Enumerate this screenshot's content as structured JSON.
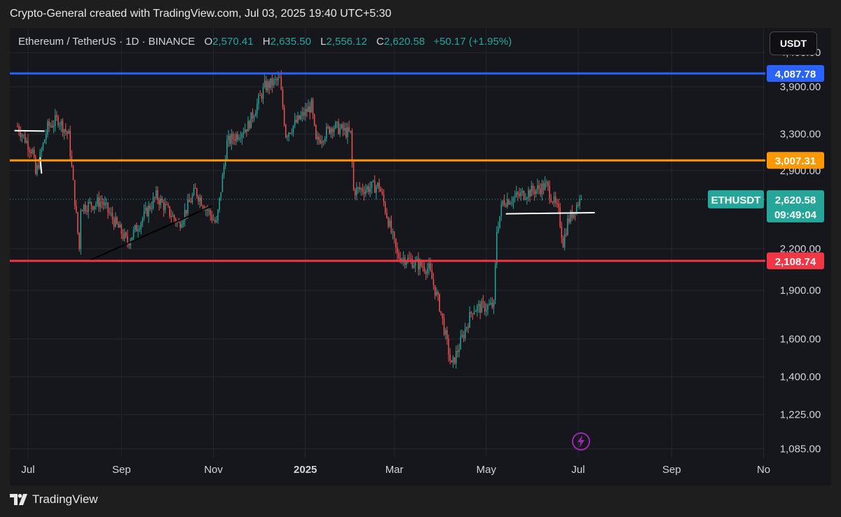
{
  "header": {
    "title": "Crypto-General created with TradingView.com, Jul 03, 2025 19:40 UTC+5:30"
  },
  "legend": {
    "symbol": "Ethereum / TetherUS · 1D · BINANCE",
    "open_label": "O",
    "open": "2,570.41",
    "high_label": "H",
    "high": "2,635.50",
    "low_label": "L",
    "low": "2,556.12",
    "close_label": "C",
    "close": "2,620.58",
    "change": "+50.17 (+1.95%)"
  },
  "currency_button": "USDT",
  "footer": {
    "brand": "TradingView"
  },
  "colors": {
    "background": "#16161d",
    "up": "#26a69a",
    "down": "#ef5350",
    "resistance_high": "#2962ff",
    "resistance_mid": "#ff9800",
    "support": "#f23645"
  },
  "chart_data": {
    "type": "candlestick",
    "symbol": "ETHUSDT",
    "y_scale": "log",
    "ylim": [
      1050,
      4800
    ],
    "y_ticks": [
      {
        "value": 4400,
        "label": "4,400.00"
      },
      {
        "value": 3900,
        "label": "3,900.00"
      },
      {
        "value": 3300,
        "label": "3,300.00"
      },
      {
        "value": 2900,
        "label": "2,900.00"
      },
      {
        "value": 2200,
        "label": "2,200.00"
      },
      {
        "value": 1900,
        "label": "1,900.00"
      },
      {
        "value": 1600,
        "label": "1,600.00"
      },
      {
        "value": 1400,
        "label": "1,400.00"
      },
      {
        "value": 1225,
        "label": "1,225.00"
      },
      {
        "value": 1085,
        "label": "1,085.00"
      }
    ],
    "x_ticks": [
      {
        "date": "2024-07-01",
        "label": "Jul"
      },
      {
        "date": "2024-09-01",
        "label": "Sep"
      },
      {
        "date": "2024-11-01",
        "label": "Nov"
      },
      {
        "date": "2025-01-01",
        "label": "2025"
      },
      {
        "date": "2025-03-01",
        "label": "Mar"
      },
      {
        "date": "2025-05-01",
        "label": "May"
      },
      {
        "date": "2025-07-01",
        "label": "Jul"
      },
      {
        "date": "2025-09-01",
        "label": "Sep"
      },
      {
        "date": "2025-11-01",
        "label": "No"
      }
    ],
    "price_anchors": [
      {
        "date": "2024-06-24",
        "price": 3420
      },
      {
        "date": "2024-07-05",
        "price": 3100
      },
      {
        "date": "2024-07-07",
        "price": 2860
      },
      {
        "date": "2024-07-15",
        "price": 3380
      },
      {
        "date": "2024-07-22",
        "price": 3480
      },
      {
        "date": "2024-07-29",
        "price": 3280
      },
      {
        "date": "2024-08-05",
        "price": 2200
      },
      {
        "date": "2024-08-06",
        "price": 2550
      },
      {
        "date": "2024-08-20",
        "price": 2600
      },
      {
        "date": "2024-09-06",
        "price": 2250
      },
      {
        "date": "2024-09-25",
        "price": 2650
      },
      {
        "date": "2024-10-10",
        "price": 2400
      },
      {
        "date": "2024-10-21",
        "price": 2700
      },
      {
        "date": "2024-11-04",
        "price": 2400
      },
      {
        "date": "2024-11-11",
        "price": 3200
      },
      {
        "date": "2024-11-25",
        "price": 3400
      },
      {
        "date": "2024-12-06",
        "price": 3900
      },
      {
        "date": "2024-12-16",
        "price": 4000
      },
      {
        "date": "2024-12-20",
        "price": 3300
      },
      {
        "date": "2025-01-06",
        "price": 3650
      },
      {
        "date": "2025-01-09",
        "price": 3200
      },
      {
        "date": "2025-01-20",
        "price": 3400
      },
      {
        "date": "2025-02-01",
        "price": 3300
      },
      {
        "date": "2025-02-03",
        "price": 2700
      },
      {
        "date": "2025-02-20",
        "price": 2750
      },
      {
        "date": "2025-03-04",
        "price": 2150
      },
      {
        "date": "2025-03-25",
        "price": 2050
      },
      {
        "date": "2025-04-01",
        "price": 1800
      },
      {
        "date": "2025-04-09",
        "price": 1450
      },
      {
        "date": "2025-04-23",
        "price": 1780
      },
      {
        "date": "2025-05-07",
        "price": 1800
      },
      {
        "date": "2025-05-09",
        "price": 2350
      },
      {
        "date": "2025-05-13",
        "price": 2600
      },
      {
        "date": "2025-06-11",
        "price": 2750
      },
      {
        "date": "2025-06-19",
        "price": 2500
      },
      {
        "date": "2025-06-22",
        "price": 2250
      },
      {
        "date": "2025-06-25",
        "price": 2420
      },
      {
        "date": "2025-07-03",
        "price": 2620.58
      }
    ],
    "horizontal_levels": [
      {
        "value": 4087.78,
        "label": "4,087.78",
        "color": "#2962ff"
      },
      {
        "value": 3007.31,
        "label": "3,007.31",
        "color": "#ff9800"
      },
      {
        "value": 2108.74,
        "label": "2,108.74",
        "color": "#f23645"
      }
    ],
    "current_price": {
      "symbol_label": "ETHUSDT",
      "value": 2620.58,
      "label": "2,620.58",
      "countdown": "09:49:04"
    },
    "trendlines": [
      {
        "from": {
          "date": "2024-08-10",
          "price": 2108
        },
        "to": {
          "date": "2024-10-31",
          "price": 2560
        },
        "color": "#000000"
      },
      {
        "from": {
          "date": "2025-05-14",
          "price": 2490
        },
        "to": {
          "date": "2025-07-12",
          "price": 2500
        },
        "color": "#ffffff"
      },
      {
        "from": {
          "date": "2024-06-22",
          "price": 3340
        },
        "to": {
          "date": "2024-07-12",
          "price": 3335
        },
        "color": "#ffffff"
      },
      {
        "from": {
          "date": "2024-07-09",
          "price": 3040
        },
        "to": {
          "date": "2024-07-10",
          "price": 2870
        },
        "color": "#ffffff"
      }
    ]
  }
}
